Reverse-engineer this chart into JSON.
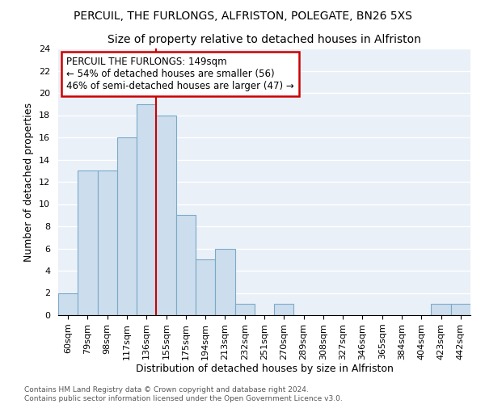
{
  "title": "PERCUIL, THE FURLONGS, ALFRISTON, POLEGATE, BN26 5XS",
  "subtitle": "Size of property relative to detached houses in Alfriston",
  "xlabel": "Distribution of detached houses by size in Alfriston",
  "ylabel": "Number of detached properties",
  "bins": [
    "60sqm",
    "79sqm",
    "98sqm",
    "117sqm",
    "136sqm",
    "155sqm",
    "175sqm",
    "194sqm",
    "213sqm",
    "232sqm",
    "251sqm",
    "270sqm",
    "289sqm",
    "308sqm",
    "327sqm",
    "346sqm",
    "365sqm",
    "384sqm",
    "404sqm",
    "423sqm",
    "442sqm"
  ],
  "values": [
    2,
    13,
    13,
    16,
    19,
    18,
    9,
    5,
    6,
    1,
    0,
    1,
    0,
    0,
    0,
    0,
    0,
    0,
    0,
    1,
    1
  ],
  "bar_color": "#ccdded",
  "bar_edge_color": "#7aaac8",
  "bg_color": "#eaf0f8",
  "grid_color": "#ffffff",
  "vline_x": 4.5,
  "vline_color": "#cc0000",
  "annotation_line1": "PERCUIL THE FURLONGS: 149sqm",
  "annotation_line2": "← 54% of detached houses are smaller (56)",
  "annotation_line3": "46% of semi-detached houses are larger (47) →",
  "annotation_box_color": "#cc0000",
  "ylim": [
    0,
    24
  ],
  "yticks": [
    0,
    2,
    4,
    6,
    8,
    10,
    12,
    14,
    16,
    18,
    20,
    22,
    24
  ],
  "footnote": "Contains HM Land Registry data © Crown copyright and database right 2024.\nContains public sector information licensed under the Open Government Licence v3.0.",
  "title_fontsize": 10,
  "subtitle_fontsize": 10,
  "tick_fontsize": 8,
  "ylabel_fontsize": 9,
  "xlabel_fontsize": 9,
  "annotation_fontsize": 8.5
}
